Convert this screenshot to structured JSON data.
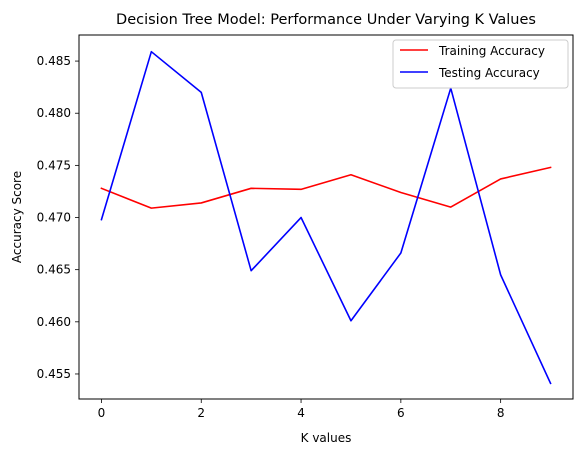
{
  "chart_data": {
    "type": "line",
    "title": "Decision Tree Model: Performance Under Varying K Values",
    "xlabel": "K values",
    "ylabel": "Accuracy Score",
    "x": [
      0,
      1,
      2,
      3,
      4,
      5,
      6,
      7,
      8,
      9
    ],
    "xlim": [
      -0.45,
      9.45
    ],
    "ylim": [
      0.4526,
      0.4875
    ],
    "xticks": [
      0,
      2,
      4,
      6,
      8
    ],
    "xtick_labels": [
      "0",
      "2",
      "4",
      "6",
      "8"
    ],
    "yticks": [
      0.455,
      0.46,
      0.465,
      0.47,
      0.475,
      0.48,
      0.485
    ],
    "ytick_labels": [
      "0.455",
      "0.460",
      "0.465",
      "0.470",
      "0.475",
      "0.480",
      "0.485"
    ],
    "grid": false,
    "legend_position": "top-right",
    "series": [
      {
        "name": "Training Accuracy",
        "color": "#ff0000",
        "values": [
          0.4728,
          0.4709,
          0.4714,
          0.4728,
          0.4727,
          0.4741,
          0.4724,
          0.471,
          0.4737,
          0.4748
        ]
      },
      {
        "name": "Testing Accuracy",
        "color": "#0000ff",
        "values": [
          0.4698,
          0.4859,
          0.482,
          0.4649,
          0.47,
          0.4601,
          0.4666,
          0.4824,
          0.4645,
          0.4541
        ]
      }
    ]
  }
}
